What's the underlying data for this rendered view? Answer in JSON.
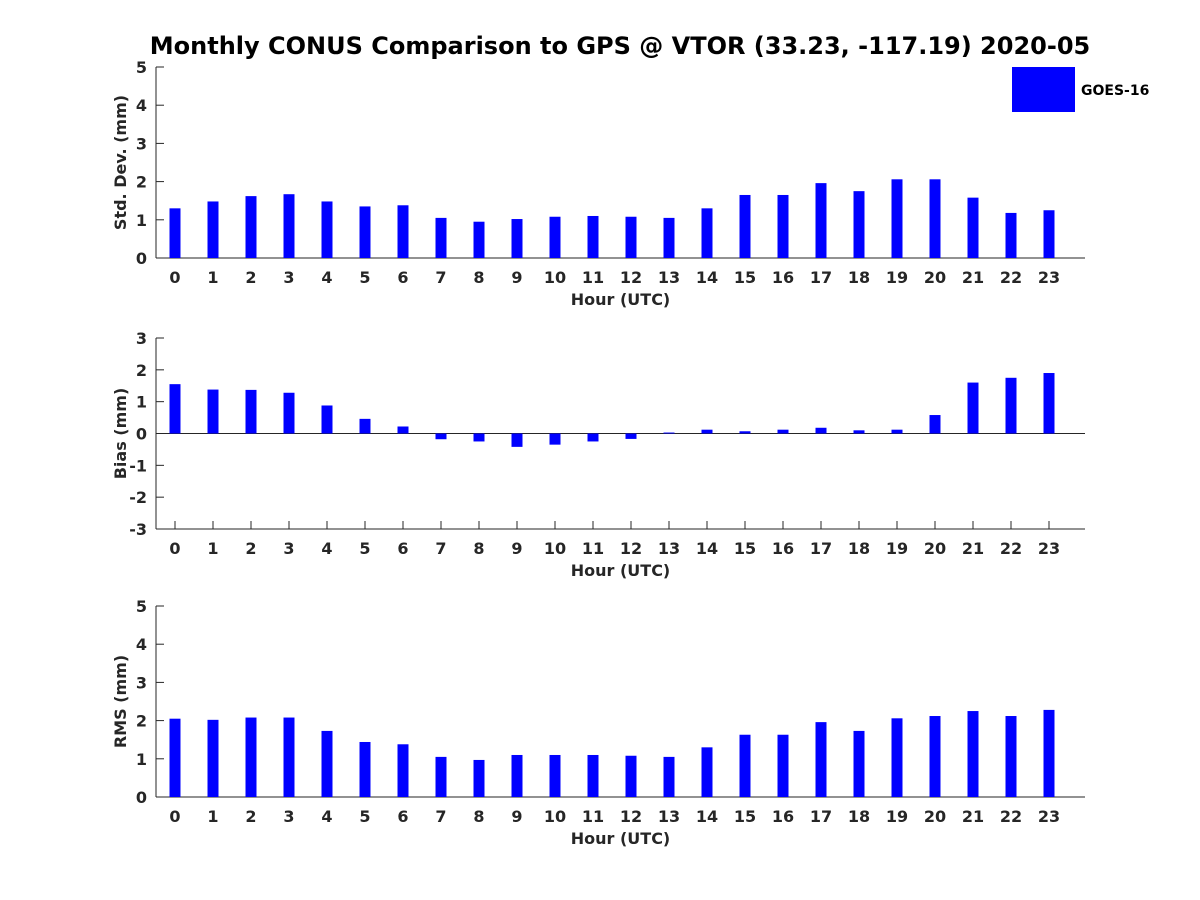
{
  "title": "Monthly CONUS Comparison to GPS @ VTOR (33.23, -117.19) 2020-05",
  "legend": {
    "label": "GOES-16",
    "color": "#0000ff"
  },
  "chart_data": [
    {
      "type": "bar",
      "title": "Monthly CONUS Comparison to GPS @ VTOR (33.23, -117.19) 2020-05",
      "xlabel": "Hour (UTC)",
      "ylabel": "Std. Dev. (mm)",
      "ylim": [
        0,
        5
      ],
      "yticks": [
        0,
        1,
        2,
        3,
        4,
        5
      ],
      "categories": [
        "0",
        "1",
        "2",
        "3",
        "4",
        "5",
        "6",
        "7",
        "8",
        "9",
        "10",
        "11",
        "12",
        "13",
        "14",
        "15",
        "16",
        "17",
        "18",
        "19",
        "20",
        "21",
        "22",
        "23"
      ],
      "series": [
        {
          "name": "GOES-16",
          "color": "#0000ff",
          "values": [
            1.3,
            1.48,
            1.62,
            1.67,
            1.48,
            1.35,
            1.38,
            1.05,
            0.95,
            1.02,
            1.08,
            1.1,
            1.08,
            1.05,
            1.3,
            1.65,
            1.65,
            1.96,
            1.75,
            2.06,
            2.06,
            1.58,
            1.18,
            1.25
          ]
        }
      ],
      "legend_position": "top-right",
      "grid": false
    },
    {
      "type": "bar",
      "xlabel": "Hour (UTC)",
      "ylabel": "Bias (mm)",
      "ylim": [
        -3,
        3
      ],
      "yticks": [
        -3,
        -2,
        -1,
        0,
        1,
        2,
        3
      ],
      "categories": [
        "0",
        "1",
        "2",
        "3",
        "4",
        "5",
        "6",
        "7",
        "8",
        "9",
        "10",
        "11",
        "12",
        "13",
        "14",
        "15",
        "16",
        "17",
        "18",
        "19",
        "20",
        "21",
        "22",
        "23"
      ],
      "series": [
        {
          "name": "GOES-16",
          "color": "#0000ff",
          "values": [
            1.55,
            1.38,
            1.37,
            1.28,
            0.88,
            0.46,
            0.22,
            -0.18,
            -0.25,
            -0.42,
            -0.35,
            -0.25,
            -0.17,
            0.03,
            0.12,
            0.07,
            0.12,
            0.18,
            0.1,
            0.12,
            0.58,
            1.6,
            1.75,
            1.9
          ]
        }
      ],
      "grid": false
    },
    {
      "type": "bar",
      "xlabel": "Hour (UTC)",
      "ylabel": "RMS (mm)",
      "ylim": [
        0,
        5
      ],
      "yticks": [
        0,
        1,
        2,
        3,
        4,
        5
      ],
      "categories": [
        "0",
        "1",
        "2",
        "3",
        "4",
        "5",
        "6",
        "7",
        "8",
        "9",
        "10",
        "11",
        "12",
        "13",
        "14",
        "15",
        "16",
        "17",
        "18",
        "19",
        "20",
        "21",
        "22",
        "23"
      ],
      "series": [
        {
          "name": "GOES-16",
          "color": "#0000ff",
          "values": [
            2.05,
            2.02,
            2.08,
            2.08,
            1.73,
            1.44,
            1.38,
            1.05,
            0.97,
            1.1,
            1.1,
            1.1,
            1.08,
            1.05,
            1.3,
            1.63,
            1.63,
            1.96,
            1.73,
            2.06,
            2.12,
            2.25,
            2.12,
            2.28
          ]
        }
      ],
      "grid": false
    }
  ]
}
